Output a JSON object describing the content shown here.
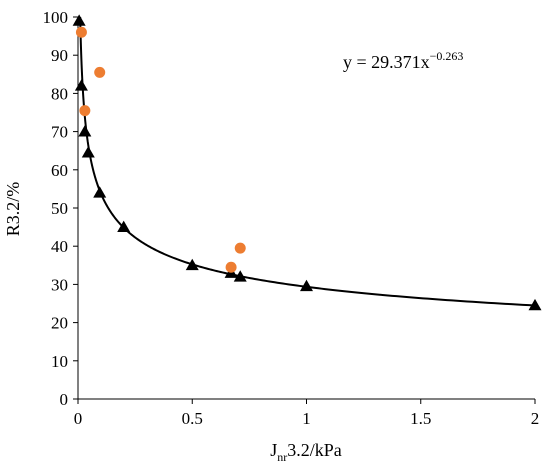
{
  "chart_data": {
    "type": "scatter",
    "title": "",
    "xlabel": {
      "main": "J",
      "sub": "nr",
      "rest": "3.2/kPa"
    },
    "ylabel": "R3.2/%",
    "xlim": [
      0,
      2
    ],
    "ylim": [
      0,
      100
    ],
    "xticks": [
      0,
      0.5,
      1,
      1.5,
      2
    ],
    "xtick_labels": [
      "0",
      "0.5",
      "1",
      "1.5",
      "2"
    ],
    "yticks": [
      0,
      10,
      20,
      30,
      40,
      50,
      60,
      70,
      80,
      90,
      100
    ],
    "ytick_labels": [
      "0",
      "10",
      "20",
      "30",
      "40",
      "50",
      "60",
      "70",
      "80",
      "90",
      "100"
    ],
    "grid": false,
    "equation": {
      "base": "y = 29.371x",
      "exponent": "−0.263"
    },
    "fit": {
      "type": "power",
      "a": 29.371,
      "b": -0.263
    },
    "series": [
      {
        "marker": "triangle",
        "color": "#000000",
        "x": [
          0.005,
          0.015,
          0.03,
          0.045,
          0.095,
          0.2,
          0.5,
          0.67,
          0.71,
          1.0,
          2.0
        ],
        "y": [
          99,
          82,
          70,
          64.5,
          54,
          45,
          35,
          33,
          32,
          29.5,
          24.5
        ]
      },
      {
        "marker": "circle",
        "color": "#ED7D31",
        "x": [
          0.015,
          0.03,
          0.095,
          0.67,
          0.71
        ],
        "y": [
          96,
          75.5,
          85.5,
          34.5,
          39.5
        ]
      }
    ]
  }
}
